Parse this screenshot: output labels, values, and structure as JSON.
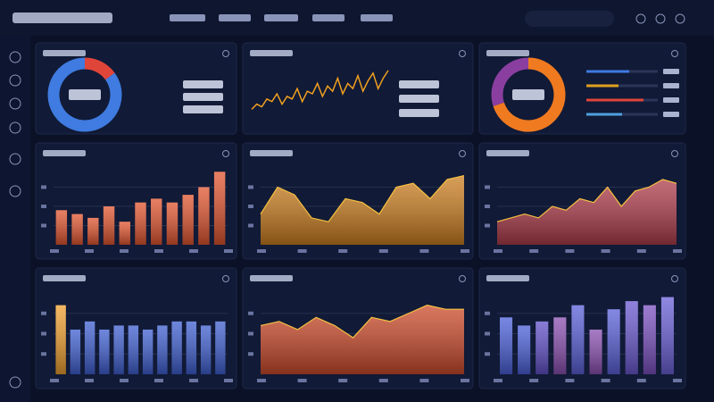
{
  "panels": [
    {
      "type": "donut",
      "values": [
        15,
        85
      ],
      "colors": [
        "#e0453a",
        "#3f7be0"
      ]
    },
    {
      "type": "line",
      "values": [
        20,
        30,
        25,
        40,
        35,
        50,
        30,
        45,
        40,
        60,
        35,
        55,
        50,
        70,
        45,
        65,
        55,
        80,
        50,
        70,
        60,
        85,
        55,
        75,
        90,
        60,
        80,
        95
      ],
      "color": "#f0a020",
      "ylim": [
        0,
        100
      ]
    },
    {
      "type": "donut",
      "values": [
        70,
        30
      ],
      "colors": [
        "#f07a20",
        "#8a3fa0"
      ],
      "bars": [
        60,
        45,
        80,
        50
      ],
      "bar_colors": [
        "#3f7be0",
        "#e0a020",
        "#e0453a",
        "#4fa0e0"
      ]
    },
    {
      "type": "bar",
      "values": [
        45,
        40,
        35,
        50,
        30,
        55,
        60,
        55,
        65,
        75,
        95
      ],
      "color": "#e0552f",
      "ylim": [
        0,
        100
      ],
      "yticks": [
        25,
        50,
        75
      ]
    },
    {
      "type": "area",
      "values": [
        40,
        75,
        65,
        35,
        30,
        60,
        55,
        40,
        75,
        80,
        60,
        85,
        90
      ],
      "color": "#e08a1e",
      "ylim": [
        0,
        100
      ],
      "yticks": [
        25,
        50,
        75
      ]
    },
    {
      "type": "area",
      "values": [
        30,
        35,
        40,
        35,
        50,
        45,
        60,
        55,
        75,
        50,
        70,
        75,
        85,
        80
      ],
      "color": "#c0404e",
      "ylim": [
        0,
        100
      ],
      "yticks": [
        25,
        50,
        75
      ]
    },
    {
      "type": "bar",
      "values": [
        85,
        55,
        65,
        55,
        60,
        60,
        55,
        60,
        65,
        65,
        60,
        65
      ],
      "colors": [
        "#f0a030",
        "#3f5fd0",
        "#3f5fd0",
        "#3f5fd0",
        "#3f5fd0",
        "#3f5fd0",
        "#3f5fd0",
        "#3f5fd0",
        "#3f5fd0",
        "#3f5fd0",
        "#3f5fd0",
        "#3f5fd0"
      ],
      "ylim": [
        0,
        100
      ],
      "yticks": [
        25,
        50,
        75
      ]
    },
    {
      "type": "area",
      "values": [
        60,
        65,
        55,
        70,
        60,
        45,
        70,
        65,
        75,
        85,
        80,
        80
      ],
      "color": "#e0502a",
      "ylim": [
        0,
        100
      ],
      "yticks": [
        25,
        50,
        75
      ]
    },
    {
      "type": "bar",
      "values": [
        70,
        60,
        65,
        70,
        85,
        55,
        80,
        90,
        85,
        95
      ],
      "colors": [
        "#4a5fd8",
        "#4a5fd8",
        "#6050c8",
        "#8a4fb0",
        "#5a60d8",
        "#8a4fb0",
        "#5a60d8",
        "#6a58d0",
        "#7a50c0",
        "#6a60d8"
      ],
      "ylim": [
        0,
        100
      ],
      "yticks": [
        25,
        50,
        75
      ]
    }
  ]
}
